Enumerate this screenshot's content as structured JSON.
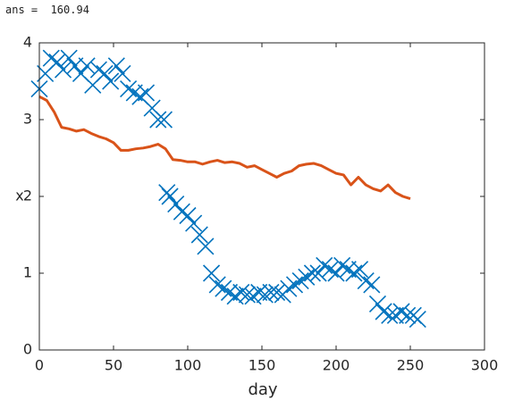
{
  "output_text": "ans =  160.94",
  "chart_data": {
    "type": "line",
    "xlabel": "day",
    "ylabel": "x",
    "xlim": [
      0,
      300
    ],
    "xticks": [
      0,
      50,
      100,
      150,
      200,
      250,
      300
    ],
    "ylim": [
      0,
      4
    ],
    "yticks": [
      0,
      1,
      2,
      3,
      4
    ],
    "box": true,
    "series": [
      {
        "color": "#d95319",
        "marker": "none",
        "x": [
          0,
          5,
          10,
          15,
          20,
          25,
          30,
          35,
          40,
          45,
          50,
          55,
          60,
          65,
          70,
          75,
          80,
          85,
          90,
          95,
          100,
          105,
          110,
          115,
          120,
          125,
          130,
          135,
          140,
          145,
          150,
          155,
          160,
          165,
          170,
          175,
          180,
          185,
          190,
          195,
          200,
          205,
          210,
          215,
          220,
          225,
          230,
          235,
          240,
          245,
          250
        ],
        "values": [
          3.3,
          3.25,
          3.1,
          2.9,
          2.88,
          2.85,
          2.87,
          2.82,
          2.78,
          2.75,
          2.7,
          2.6,
          2.6,
          2.62,
          2.63,
          2.65,
          2.68,
          2.62,
          2.48,
          2.47,
          2.45,
          2.45,
          2.42,
          2.45,
          2.47,
          2.44,
          2.45,
          2.43,
          2.38,
          2.4,
          2.35,
          2.3,
          2.25,
          2.3,
          2.33,
          2.4,
          2.42,
          2.43,
          2.4,
          2.35,
          2.3,
          2.28,
          2.15,
          2.25,
          2.15,
          2.1,
          2.07,
          2.15,
          2.05,
          2.0,
          1.97
        ]
      },
      {
        "color": "#0072bd",
        "marker": "x",
        "x": [
          0,
          4,
          8,
          12,
          16,
          20,
          24,
          28,
          32,
          36,
          40,
          44,
          48,
          52,
          56,
          60,
          64,
          68,
          72,
          76,
          80,
          84,
          86,
          88,
          92,
          96,
          100,
          104,
          108,
          112,
          116,
          120,
          124,
          128,
          132,
          136,
          140,
          144,
          148,
          152,
          156,
          160,
          164,
          168,
          172,
          176,
          180,
          184,
          188,
          192,
          196,
          200,
          204,
          208,
          212,
          216,
          220,
          224,
          228,
          232,
          236,
          240,
          244,
          248,
          252,
          255
        ],
        "values": [
          3.4,
          3.6,
          3.8,
          3.75,
          3.65,
          3.8,
          3.7,
          3.6,
          3.7,
          3.45,
          3.65,
          3.6,
          3.5,
          3.7,
          3.6,
          3.4,
          3.35,
          3.3,
          3.35,
          3.15,
          3.0,
          3.0,
          2.05,
          2.0,
          1.9,
          1.8,
          1.75,
          1.65,
          1.5,
          1.35,
          1.0,
          0.85,
          0.8,
          0.75,
          0.7,
          0.75,
          0.72,
          0.7,
          0.75,
          0.72,
          0.75,
          0.75,
          0.72,
          0.8,
          0.85,
          0.9,
          0.95,
          1.0,
          1.0,
          1.1,
          1.05,
          1.0,
          1.1,
          1.05,
          1.0,
          1.05,
          0.9,
          0.85,
          0.6,
          0.5,
          0.45,
          0.45,
          0.5,
          0.45,
          0.45,
          0.4
        ]
      }
    ]
  }
}
